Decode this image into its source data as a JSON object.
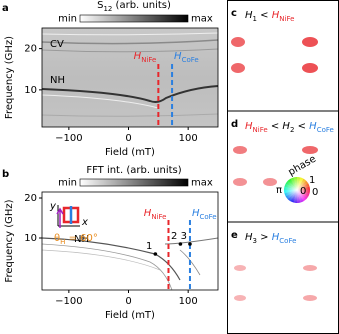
{
  "chart_data": [
    {
      "type": "heatmap",
      "panel_label": "a",
      "colorbar": {
        "title": [
          {
            "t": "S",
            "sub": "12"
          },
          {
            "t": " (arb. units)"
          }
        ],
        "min": "min",
        "max": "max"
      },
      "xlabel": "Field (mT)",
      "ylabel": "Frequency (GHz)",
      "xlim": [
        -145,
        150
      ],
      "ylim": [
        1,
        25
      ],
      "xticks": [
        {
          "value": -100,
          "label": "−100"
        },
        0,
        100
      ],
      "yticks": [
        10,
        20
      ],
      "annotations": [
        {
          "text": "CV"
        },
        {
          "text": "NH"
        }
      ],
      "field_markers": [
        {
          "symbol": "H",
          "sub": "NiFe",
          "x": 50,
          "color": "#e8262b"
        },
        {
          "symbol": "H",
          "sub": "CoFe",
          "x": 73,
          "color": "#2a7fe0"
        }
      ]
    },
    {
      "type": "heatmap",
      "panel_label": "b",
      "colorbar": {
        "title": [
          {
            "t": "FFT int. (arb. units)"
          }
        ],
        "min": "min",
        "max": "max"
      },
      "xlabel": "Field (mT)",
      "ylabel": "Frequency (GHz)",
      "xlim": [
        -145,
        150
      ],
      "ylim": [
        -3,
        21.5
      ],
      "xticks": [
        {
          "value": -100,
          "label": "−100"
        },
        0,
        100
      ],
      "yticks": [
        10,
        20
      ],
      "annotations": [
        {
          "text": "NH"
        }
      ],
      "field_markers": [
        {
          "symbol": "H",
          "sub": "NiFe",
          "x": 67,
          "color": "#e8262b"
        },
        {
          "symbol": "H",
          "sub": "CoFe",
          "x": 103,
          "color": "#2a7fe0"
        }
      ],
      "points": [
        {
          "label": "1",
          "x": 45,
          "y": 6
        },
        {
          "label": "2",
          "x": 87,
          "y": 8.5
        },
        {
          "label": "3",
          "x": 103,
          "y": 8.5
        }
      ],
      "inset": {
        "y_axis": "y",
        "x_axis": "x",
        "angle": [
          {
            "t": "θ",
            "sub": "H"
          },
          {
            "t": " = 60°"
          }
        ]
      }
    }
  ],
  "mode_panels": [
    {
      "panel_label": "c",
      "condition": [
        {
          "t": "H",
          "italic": true,
          "sub": "1"
        },
        {
          "t": " < "
        },
        {
          "t": "H",
          "italic": true,
          "sub": "NiFe",
          "color": "#e8262b"
        }
      ]
    },
    {
      "panel_label": "d",
      "condition": [
        {
          "t": "H",
          "italic": true,
          "sub": "NiFe",
          "color": "#e8262b"
        },
        {
          "t": " < "
        },
        {
          "t": "H",
          "italic": true,
          "sub": "2"
        },
        {
          "t": " < "
        },
        {
          "t": "H",
          "italic": true,
          "sub": "CoFe",
          "color": "#2a7fe0"
        }
      ]
    },
    {
      "panel_label": "e",
      "condition": [
        {
          "t": "H",
          "italic": true,
          "sub": "3"
        },
        {
          "t": " > "
        },
        {
          "t": "H",
          "italic": true,
          "sub": "CoFe",
          "color": "#2a7fe0"
        }
      ]
    }
  ],
  "phase_wheel": {
    "title": "phase",
    "angle_labels": [
      "π",
      "0"
    ],
    "amplitude_labels": [
      "0",
      "1"
    ]
  }
}
